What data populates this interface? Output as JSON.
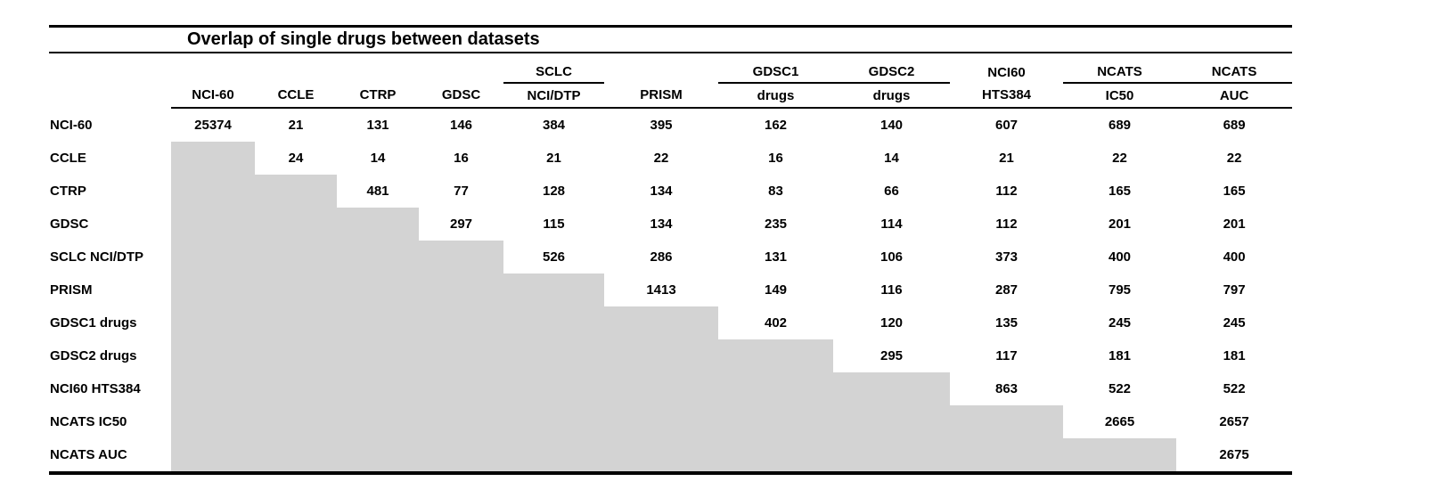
{
  "chart_data": {
    "type": "table",
    "title": "Overlap of single drugs between datasets",
    "columns_top": [
      "",
      "",
      "",
      "",
      "SCLC",
      "",
      "GDSC1",
      "GDSC2",
      "NCI60",
      "NCATS",
      "NCATS"
    ],
    "columns_bottom": [
      "NCI-60",
      "CCLE",
      "CTRP",
      "GDSC",
      "NCI/DTP",
      "PRISM",
      "drugs",
      "drugs",
      "HTS384",
      "IC50",
      "AUC"
    ],
    "columns_full": [
      "NCI-60",
      "CCLE",
      "CTRP",
      "GDSC",
      "SCLC NCI/DTP",
      "PRISM",
      "GDSC1 drugs",
      "GDSC2 drugs",
      "NCI60 HTS384",
      "NCATS IC50",
      "NCATS AUC"
    ],
    "row_labels": [
      "NCI-60",
      "CCLE",
      "CTRP",
      "GDSC",
      "SCLC NCI/DTP",
      "PRISM",
      "GDSC1 drugs",
      "GDSC2 drugs",
      "NCI60 HTS384",
      "NCATS IC50",
      "NCATS AUC"
    ],
    "matrix": [
      [
        25374,
        21,
        131,
        146,
        384,
        395,
        162,
        140,
        607,
        689,
        689
      ],
      [
        null,
        24,
        14,
        16,
        21,
        22,
        16,
        14,
        21,
        22,
        22
      ],
      [
        null,
        null,
        481,
        77,
        128,
        134,
        83,
        66,
        112,
        165,
        165
      ],
      [
        null,
        null,
        null,
        297,
        115,
        134,
        235,
        114,
        112,
        201,
        201
      ],
      [
        null,
        null,
        null,
        null,
        526,
        286,
        131,
        106,
        373,
        400,
        400
      ],
      [
        null,
        null,
        null,
        null,
        null,
        1413,
        149,
        116,
        287,
        795,
        797
      ],
      [
        null,
        null,
        null,
        null,
        null,
        null,
        402,
        120,
        135,
        245,
        245
      ],
      [
        null,
        null,
        null,
        null,
        null,
        null,
        null,
        295,
        117,
        181,
        181
      ],
      [
        null,
        null,
        null,
        null,
        null,
        null,
        null,
        null,
        863,
        522,
        522
      ],
      [
        null,
        null,
        null,
        null,
        null,
        null,
        null,
        null,
        null,
        2665,
        2657
      ],
      [
        null,
        null,
        null,
        null,
        null,
        null,
        null,
        null,
        null,
        null,
        2675
      ]
    ],
    "shaded_region": "lower-left triangle (cells below the diagonal) filled gray",
    "legend_position": "none",
    "grid": false,
    "colors": {
      "shaded_cell": "#d3d3d3",
      "text": "#000000",
      "rule": "#000000",
      "background": "#ffffff"
    }
  }
}
